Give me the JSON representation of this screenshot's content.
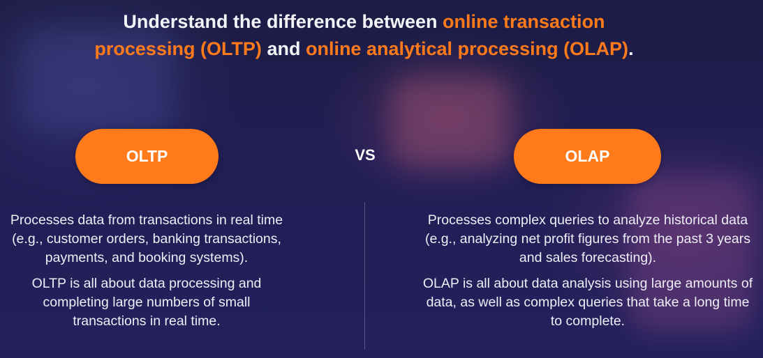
{
  "headline": {
    "line1_plain": "Understand the difference between ",
    "line1_highlight": "online transaction",
    "line2_highlight_a": "processing (OLTP)",
    "line2_plain": " and ",
    "line2_highlight_b": "online analytical processing (OLAP)",
    "line2_end": "."
  },
  "left": {
    "pill_label": "OLTP",
    "paragraph1": "Processes data from transactions in real time (e.g., customer orders, banking transactions, payments, and booking systems).",
    "paragraph2": "OLTP is all about data processing and completing large numbers of small transactions in real time."
  },
  "vs_label": "VS",
  "right": {
    "pill_label": "OLAP",
    "paragraph1": "Processes complex queries to analyze historical data (e.g., analyzing net profit figures from the past 3 years and sales forecasting).",
    "paragraph2": "OLAP is all about data analysis using large amounts of data, as well as complex queries that take a long time to complete."
  },
  "colors": {
    "accent": "#ff7a1a",
    "background": "#211e55",
    "text": "#f2f2f7"
  }
}
